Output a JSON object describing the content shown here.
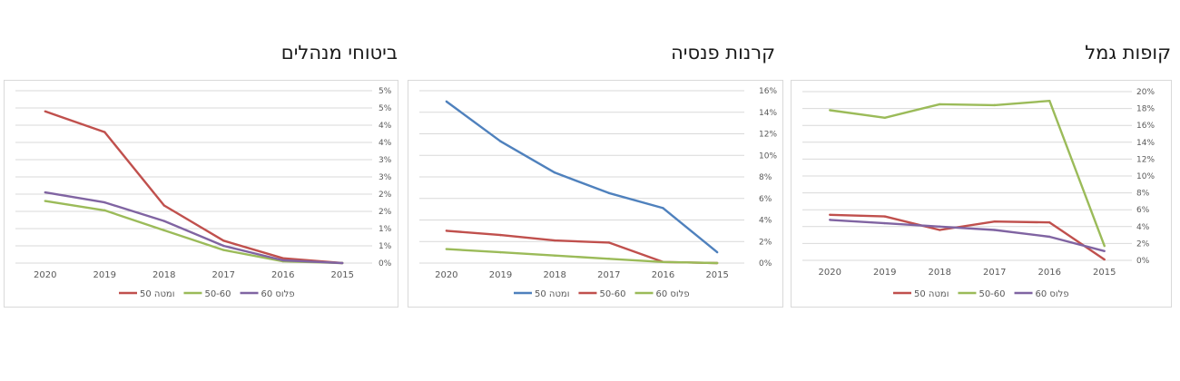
{
  "chart_data": [
    {
      "type": "line",
      "title": "קופות גמל",
      "categories": [
        "2015",
        "2016",
        "2017",
        "2018",
        "2019",
        "2020"
      ],
      "ylim": [
        0,
        20
      ],
      "yticks": [
        0,
        2,
        4,
        6,
        8,
        10,
        12,
        14,
        16,
        18,
        20
      ],
      "ytick_labels": [
        "0%",
        "2%",
        "4%",
        "6%",
        "8%",
        "10%",
        "12%",
        "14%",
        "16%",
        "18%",
        "20%"
      ],
      "grid": true,
      "legend_position": "bottom",
      "series": [
        {
          "name": "50 ומטה",
          "color": "#c0504d",
          "values": [
            0.1,
            4.5,
            4.6,
            3.6,
            5.2,
            5.4
          ]
        },
        {
          "name": "50-60",
          "color": "#9bbb59",
          "values": [
            1.7,
            18.9,
            18.4,
            18.5,
            16.9,
            17.8
          ]
        },
        {
          "name": "60 פלוס",
          "color": "#8064a2",
          "values": [
            1.1,
            2.8,
            3.6,
            4.0,
            4.4,
            4.8
          ]
        }
      ]
    },
    {
      "type": "line",
      "title": "קרנות פנסיה",
      "categories": [
        "2015",
        "2016",
        "2017",
        "2018",
        "2019",
        "2020"
      ],
      "ylim": [
        0,
        16
      ],
      "yticks": [
        0,
        2,
        4,
        6,
        8,
        10,
        12,
        14,
        16
      ],
      "ytick_labels": [
        "0%",
        "2%",
        "4%",
        "6%",
        "8%",
        "10%",
        "12%",
        "14%",
        "16%"
      ],
      "grid": true,
      "legend_position": "bottom",
      "series": [
        {
          "name": "50 ומטה",
          "color": "#4f81bd",
          "values": [
            1.0,
            5.1,
            6.5,
            8.4,
            11.3,
            15.0
          ]
        },
        {
          "name": "50-60",
          "color": "#c0504d",
          "values": [
            0.0,
            0.1,
            1.9,
            2.1,
            2.6,
            3.0
          ]
        },
        {
          "name": "60 פלוס",
          "color": "#9bbb59",
          "values": [
            0.0,
            0.1,
            0.4,
            0.7,
            1.0,
            1.3
          ]
        }
      ]
    },
    {
      "type": "line",
      "title": "ביטוחי מנהלים",
      "categories": [
        "2015",
        "2016",
        "2017",
        "2018",
        "2019",
        "2020"
      ],
      "ylim": [
        0,
        5
      ],
      "yticks": [
        0,
        0.5,
        1,
        1.5,
        2,
        2.5,
        3,
        3.5,
        4,
        4.5,
        5
      ],
      "ytick_labels": [
        "0%",
        "1%",
        "1%",
        "2%",
        "2%",
        "3%",
        "3%",
        "4%",
        "4%",
        "5%",
        "5%"
      ],
      "grid": true,
      "legend_position": "bottom",
      "series": [
        {
          "name": "50 ומטה",
          "color": "#c0504d",
          "values": [
            0.0,
            0.14,
            0.65,
            1.67,
            3.8,
            4.4
          ]
        },
        {
          "name": "50-60",
          "color": "#9bbb59",
          "values": [
            0.0,
            0.05,
            0.38,
            0.95,
            1.53,
            1.8
          ]
        },
        {
          "name": "60 פלוס",
          "color": "#8064a2",
          "values": [
            0.0,
            0.08,
            0.5,
            1.22,
            1.76,
            2.05
          ]
        }
      ]
    }
  ]
}
